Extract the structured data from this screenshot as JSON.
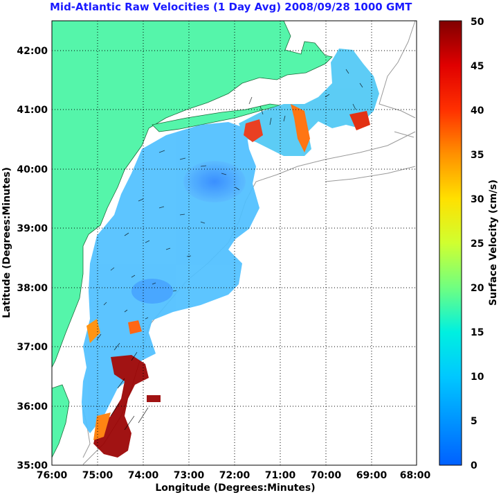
{
  "title": "Mid-Atlantic Raw Velocities (1 Day Avg) 2008/09/28 1000 GMT",
  "xaxis": {
    "label": "Longitude (Degrees:Minutes)",
    "ticks": [
      "76:00",
      "75:00",
      "74:00",
      "73:00",
      "72:00",
      "71:00",
      "70:00",
      "69:00",
      "68:00"
    ]
  },
  "yaxis": {
    "label": "Latitude (Degrees:Minutes)",
    "ticks": [
      "35:00",
      "36:00",
      "37:00",
      "38:00",
      "39:00",
      "40:00",
      "41:00",
      "42:00"
    ]
  },
  "colorbar": {
    "label": "Surface Velocity (cm/s)",
    "ticks": [
      "0",
      "5",
      "10",
      "15",
      "20",
      "25",
      "30",
      "35",
      "40",
      "45",
      "50"
    ],
    "range": [
      0,
      50
    ]
  },
  "colors": {
    "land": "#55f5aa",
    "water": "#ffffff",
    "title": "#1a1aff",
    "grid": "#000000",
    "isobath": "#999999"
  }
}
